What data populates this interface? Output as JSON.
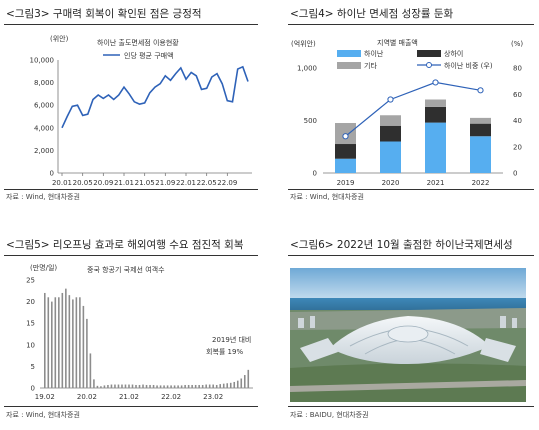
{
  "panels": {
    "fig3": {
      "title": "<그림3> 구매력 회복이 확인된 점은 긍정적",
      "source": "자료 : Wind, 현대차증권"
    },
    "fig4": {
      "title": "<그림4> 하이난 면세점 성장률 둔화",
      "source": "자료 : Wind, 현대차증권"
    },
    "fig5": {
      "title": "<그림5> 리오프닝 효과로 해외여행 수요 점진적 회복",
      "source": "자료 : Wind, 현대차증권"
    },
    "fig6": {
      "title": "<그림6> 2022년 10월 출점한 하이난국제면세성",
      "source": "자료 : BAIDU, 현대차증권"
    }
  },
  "chart_data": [
    {
      "id": "fig3",
      "type": "line",
      "title": "하이난 출도면세점 이용현황",
      "unit_label": "(위안)",
      "ylim": [
        0,
        10000
      ],
      "yticks": [
        0,
        2000,
        4000,
        6000,
        8000,
        10000
      ],
      "ytick_labels": [
        "0",
        "2,000",
        "4,000",
        "6,000",
        "8,000",
        "10,000"
      ],
      "xtick_labels": [
        "20.01",
        "20.05",
        "20.09",
        "21.01",
        "21.05",
        "21.09",
        "22.01",
        "22.05",
        "22.09"
      ],
      "series": [
        {
          "name": "인당 평균 구매액",
          "color": "#2e62b8",
          "values": [
            4000,
            5000,
            5900,
            6000,
            5100,
            5200,
            6500,
            6900,
            6600,
            6900,
            6500,
            6900,
            7600,
            7000,
            6300,
            6100,
            6200,
            7100,
            7600,
            7900,
            8600,
            8200,
            8800,
            9300,
            8300,
            8900,
            8600,
            7400,
            7500,
            8500,
            8800,
            7900,
            6400,
            6300,
            9200,
            9400,
            8100
          ]
        }
      ],
      "grid": false
    },
    {
      "id": "fig4",
      "type": "bar",
      "title": "지역별 매출액",
      "unit_label_left": "(억위안)",
      "unit_label_right": "(%)",
      "categories": [
        "2019",
        "2020",
        "2021",
        "2022"
      ],
      "ylim": [
        0,
        1000
      ],
      "yticks": [
        0,
        500,
        1000
      ],
      "ytick_labels": [
        "0",
        "500",
        "1,000"
      ],
      "y2lim": [
        0,
        80
      ],
      "y2ticks": [
        0,
        20,
        40,
        60,
        80
      ],
      "stacked": true,
      "series": [
        {
          "name": "하이난",
          "color": "#56aef0",
          "values": [
            136,
            300,
            480,
            350
          ]
        },
        {
          "name": "상하이",
          "color": "#2f2f2f",
          "values": [
            140,
            150,
            150,
            120
          ]
        },
        {
          "name": "기타",
          "color": "#a5a5a5",
          "values": [
            200,
            100,
            70,
            55
          ]
        }
      ],
      "line_series": {
        "name": "하이난 비중 (우)",
        "color": "#2e62b8",
        "values": [
          28,
          56,
          69,
          63
        ],
        "axis": "right"
      },
      "grid": false
    },
    {
      "id": "fig5",
      "type": "bar",
      "title": "중국 항공기 국제선 여객수",
      "unit_label": "(만명/일)",
      "ylim": [
        0,
        25
      ],
      "yticks": [
        0,
        5,
        10,
        15,
        20,
        25
      ],
      "ytick_labels": [
        "0",
        "5",
        "10",
        "15",
        "20",
        "25"
      ],
      "xtick_labels": [
        "19.02",
        "20.02",
        "21.02",
        "22.02",
        "23.02"
      ],
      "series": [
        {
          "name": "중국 항공기 국제선 여객수",
          "color": "#8c8c8c",
          "values": [
            22,
            21,
            20,
            21,
            21,
            22,
            23,
            21.5,
            20.5,
            21,
            21,
            19,
            16,
            8,
            2,
            0.5,
            0.4,
            0.6,
            0.7,
            0.8,
            0.8,
            0.8,
            0.8,
            0.8,
            0.8,
            0.8,
            0.7,
            0.7,
            0.8,
            0.7,
            0.7,
            0.7,
            0.6,
            0.6,
            0.6,
            0.6,
            0.6,
            0.6,
            0.6,
            0.6,
            0.7,
            0.7,
            0.7,
            0.7,
            0.7,
            0.7,
            0.8,
            0.8,
            0.8,
            0.7,
            0.9,
            1.0,
            1.1,
            1.2,
            1.4,
            1.7,
            2.2,
            3.0,
            4.2
          ]
        }
      ],
      "annotation": [
        "2019년 대비",
        "회복률 19%"
      ],
      "grid": false
    }
  ],
  "image": {
    "alt": "하이난국제면세성 항공 사진"
  }
}
